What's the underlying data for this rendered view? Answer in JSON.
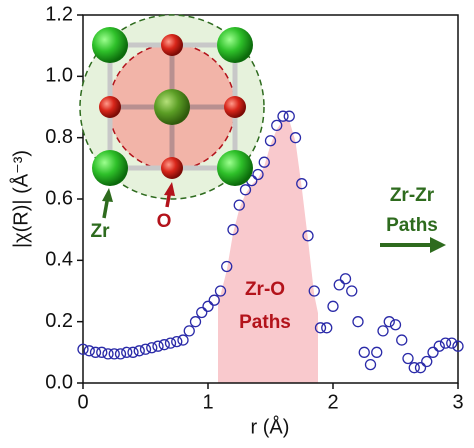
{
  "chart_data": {
    "type": "scatter",
    "xlabel": "r (Å)",
    "ylabel": "|χ(R)| (Å⁻³)",
    "x": [
      0,
      0.05,
      0.1,
      0.15,
      0.2,
      0.25,
      0.3,
      0.35,
      0.4,
      0.45,
      0.5,
      0.55,
      0.6,
      0.65,
      0.7,
      0.75,
      0.8,
      0.85,
      0.9,
      0.95,
      1.0,
      1.05,
      1.1,
      1.15,
      1.2,
      1.25,
      1.3,
      1.35,
      1.4,
      1.45,
      1.5,
      1.55,
      1.6,
      1.65,
      1.7,
      1.75,
      1.8,
      1.85,
      1.9,
      1.95,
      2.0,
      2.05,
      2.1,
      2.15,
      2.2,
      2.25,
      2.3,
      2.35,
      2.4,
      2.45,
      2.5,
      2.55,
      2.6,
      2.65,
      2.7,
      2.75,
      2.8,
      2.85,
      2.9,
      2.95,
      3.0
    ],
    "values": [
      0.11,
      0.105,
      0.1,
      0.1,
      0.095,
      0.095,
      0.095,
      0.1,
      0.1,
      0.105,
      0.11,
      0.115,
      0.12,
      0.125,
      0.13,
      0.135,
      0.14,
      0.17,
      0.2,
      0.23,
      0.25,
      0.27,
      0.3,
      0.38,
      0.5,
      0.58,
      0.63,
      0.66,
      0.68,
      0.72,
      0.79,
      0.84,
      0.87,
      0.87,
      0.8,
      0.65,
      0.48,
      0.3,
      0.18,
      0.18,
      0.25,
      0.32,
      0.34,
      0.3,
      0.2,
      0.1,
      0.06,
      0.1,
      0.17,
      0.2,
      0.19,
      0.14,
      0.08,
      0.05,
      0.05,
      0.07,
      0.1,
      0.12,
      0.13,
      0.13,
      0.12
    ],
    "color": "#2a2aa8",
    "fill_range": [
      1.08,
      1.88
    ],
    "fill_color": "#f9c9cd",
    "xlim": [
      0,
      3
    ],
    "xticks": [
      0,
      1,
      2,
      3
    ],
    "ylim": [
      0,
      1.2
    ],
    "yticks": [
      {
        "value": 0,
        "label": "0.0"
      },
      0.2,
      0.4,
      0.6,
      0.8,
      {
        "value": 1,
        "label": "1.0"
      },
      1.2
    ],
    "annotations": [
      {
        "text": "Zr-O",
        "color": "#b3131b"
      },
      {
        "text": "Paths",
        "color": "#b3131b"
      },
      {
        "text": "Zr-Zr",
        "color": "#2e6b1e"
      },
      {
        "text": "Paths",
        "color": "#2e6b1e"
      },
      {
        "text": "Zr",
        "color": "#2e6b1e"
      },
      {
        "text": "O",
        "color": "#b3131b"
      }
    ]
  }
}
